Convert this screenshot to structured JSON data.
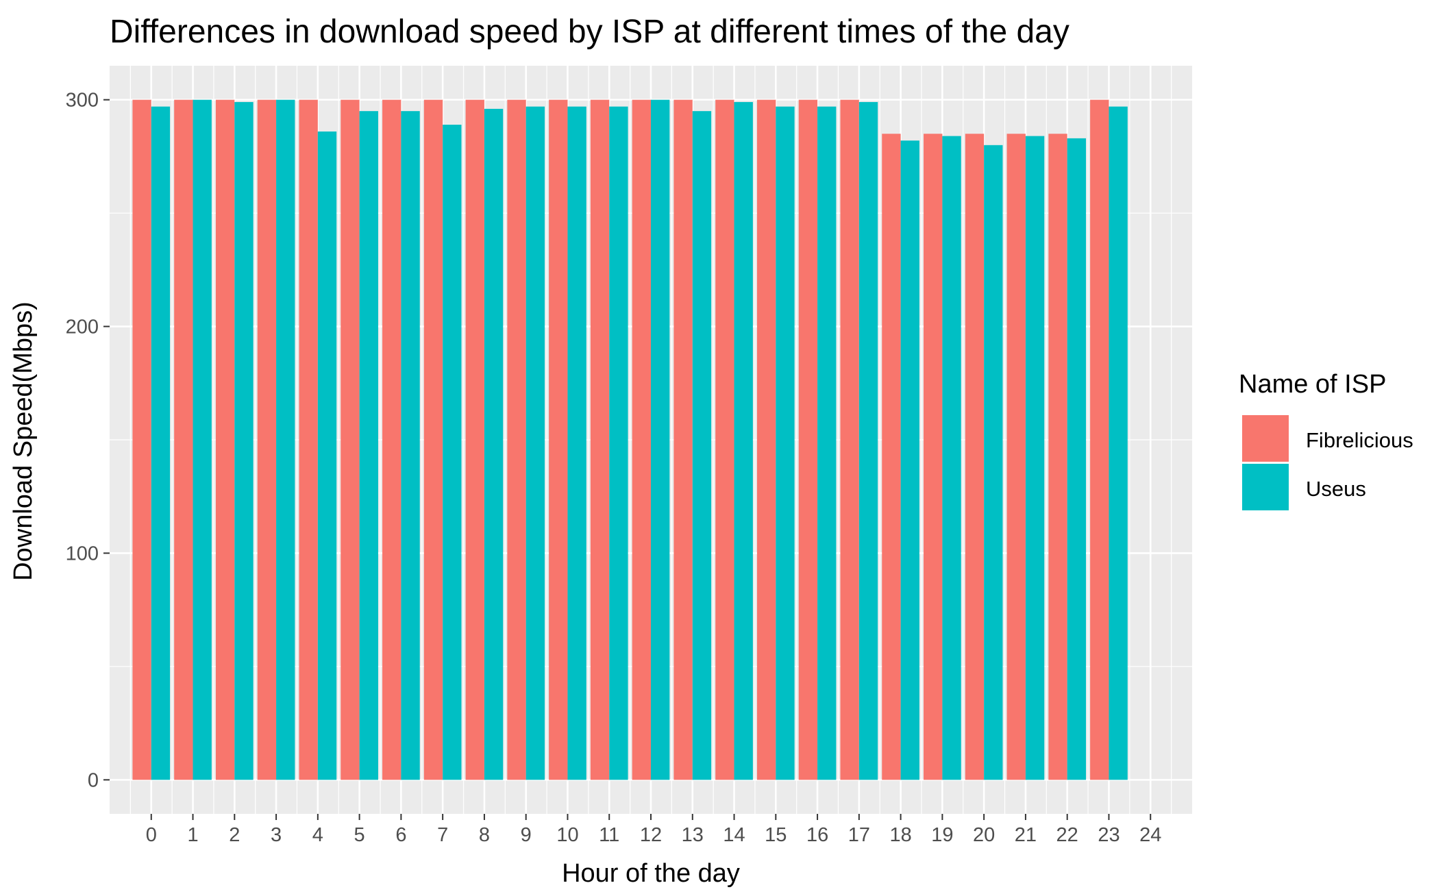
{
  "chart_data": {
    "type": "bar",
    "title": "Differences in download speed by ISP at different times of the day",
    "xlabel": "Hour of the day",
    "ylabel": "Download Speed(Mbps)",
    "x_ticks": [
      "0",
      "1",
      "2",
      "3",
      "4",
      "5",
      "6",
      "7",
      "8",
      "9",
      "10",
      "11",
      "12",
      "13",
      "14",
      "15",
      "16",
      "17",
      "18",
      "19",
      "20",
      "21",
      "22",
      "23",
      "24"
    ],
    "categories": [
      0,
      1,
      2,
      3,
      4,
      5,
      6,
      7,
      8,
      9,
      10,
      11,
      12,
      13,
      14,
      15,
      16,
      17,
      18,
      19,
      20,
      21,
      22,
      23
    ],
    "y_ticks": [
      0,
      100,
      200,
      300
    ],
    "ylim": [
      -15,
      315
    ],
    "xlim": [
      -1,
      25
    ],
    "grid": true,
    "legend": {
      "title": "Name of ISP",
      "position": "right"
    },
    "series": [
      {
        "name": "Fibrelicious",
        "color": "#F8766D",
        "values": [
          300,
          300,
          300,
          300,
          300,
          300,
          300,
          300,
          300,
          300,
          300,
          300,
          300,
          300,
          300,
          300,
          300,
          300,
          285,
          285,
          285,
          285,
          285,
          300
        ]
      },
      {
        "name": "Useus",
        "color": "#00BFC4",
        "values": [
          297,
          300,
          299,
          300,
          286,
          295,
          295,
          289,
          296,
          297,
          297,
          297,
          300,
          295,
          299,
          297,
          297,
          299,
          282,
          284,
          280,
          284,
          283,
          297
        ]
      }
    ]
  }
}
